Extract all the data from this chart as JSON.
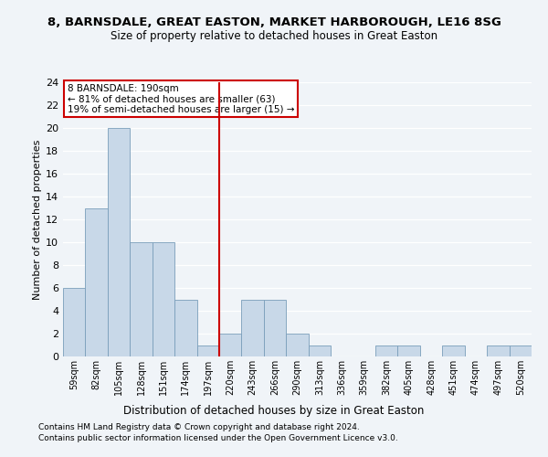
{
  "title1": "8, BARNSDALE, GREAT EASTON, MARKET HARBOROUGH, LE16 8SG",
  "title2": "Size of property relative to detached houses in Great Easton",
  "xlabel": "Distribution of detached houses by size in Great Easton",
  "ylabel": "Number of detached properties",
  "bin_labels": [
    "59sqm",
    "82sqm",
    "105sqm",
    "128sqm",
    "151sqm",
    "174sqm",
    "197sqm",
    "220sqm",
    "243sqm",
    "266sqm",
    "290sqm",
    "313sqm",
    "336sqm",
    "359sqm",
    "382sqm",
    "405sqm",
    "428sqm",
    "451sqm",
    "474sqm",
    "497sqm",
    "520sqm"
  ],
  "bar_values": [
    6,
    13,
    20,
    10,
    10,
    5,
    1,
    2,
    5,
    5,
    2,
    1,
    0,
    0,
    1,
    1,
    0,
    1,
    0,
    1,
    1
  ],
  "bar_color": "#c8d8e8",
  "bar_edge_color": "#7a9eba",
  "vline_x": 6.5,
  "vline_color": "#cc0000",
  "annotation_text": "8 BARNSDALE: 190sqm\n← 81% of detached houses are smaller (63)\n19% of semi-detached houses are larger (15) →",
  "annotation_box_color": "#cc0000",
  "ylim": [
    0,
    24
  ],
  "yticks": [
    0,
    2,
    4,
    6,
    8,
    10,
    12,
    14,
    16,
    18,
    20,
    22,
    24
  ],
  "footnote1": "Contains HM Land Registry data © Crown copyright and database right 2024.",
  "footnote2": "Contains public sector information licensed under the Open Government Licence v3.0.",
  "bg_color": "#f0f4f8",
  "plot_bg_color": "#f0f4f8",
  "grid_color": "#ffffff",
  "title1_fontsize": 9.5,
  "title2_fontsize": 8.5,
  "ylabel_fontsize": 8,
  "xlabel_fontsize": 8.5,
  "tick_fontsize": 8,
  "xtick_fontsize": 7,
  "footnote_fontsize": 6.5,
  "annot_fontsize": 7.5
}
